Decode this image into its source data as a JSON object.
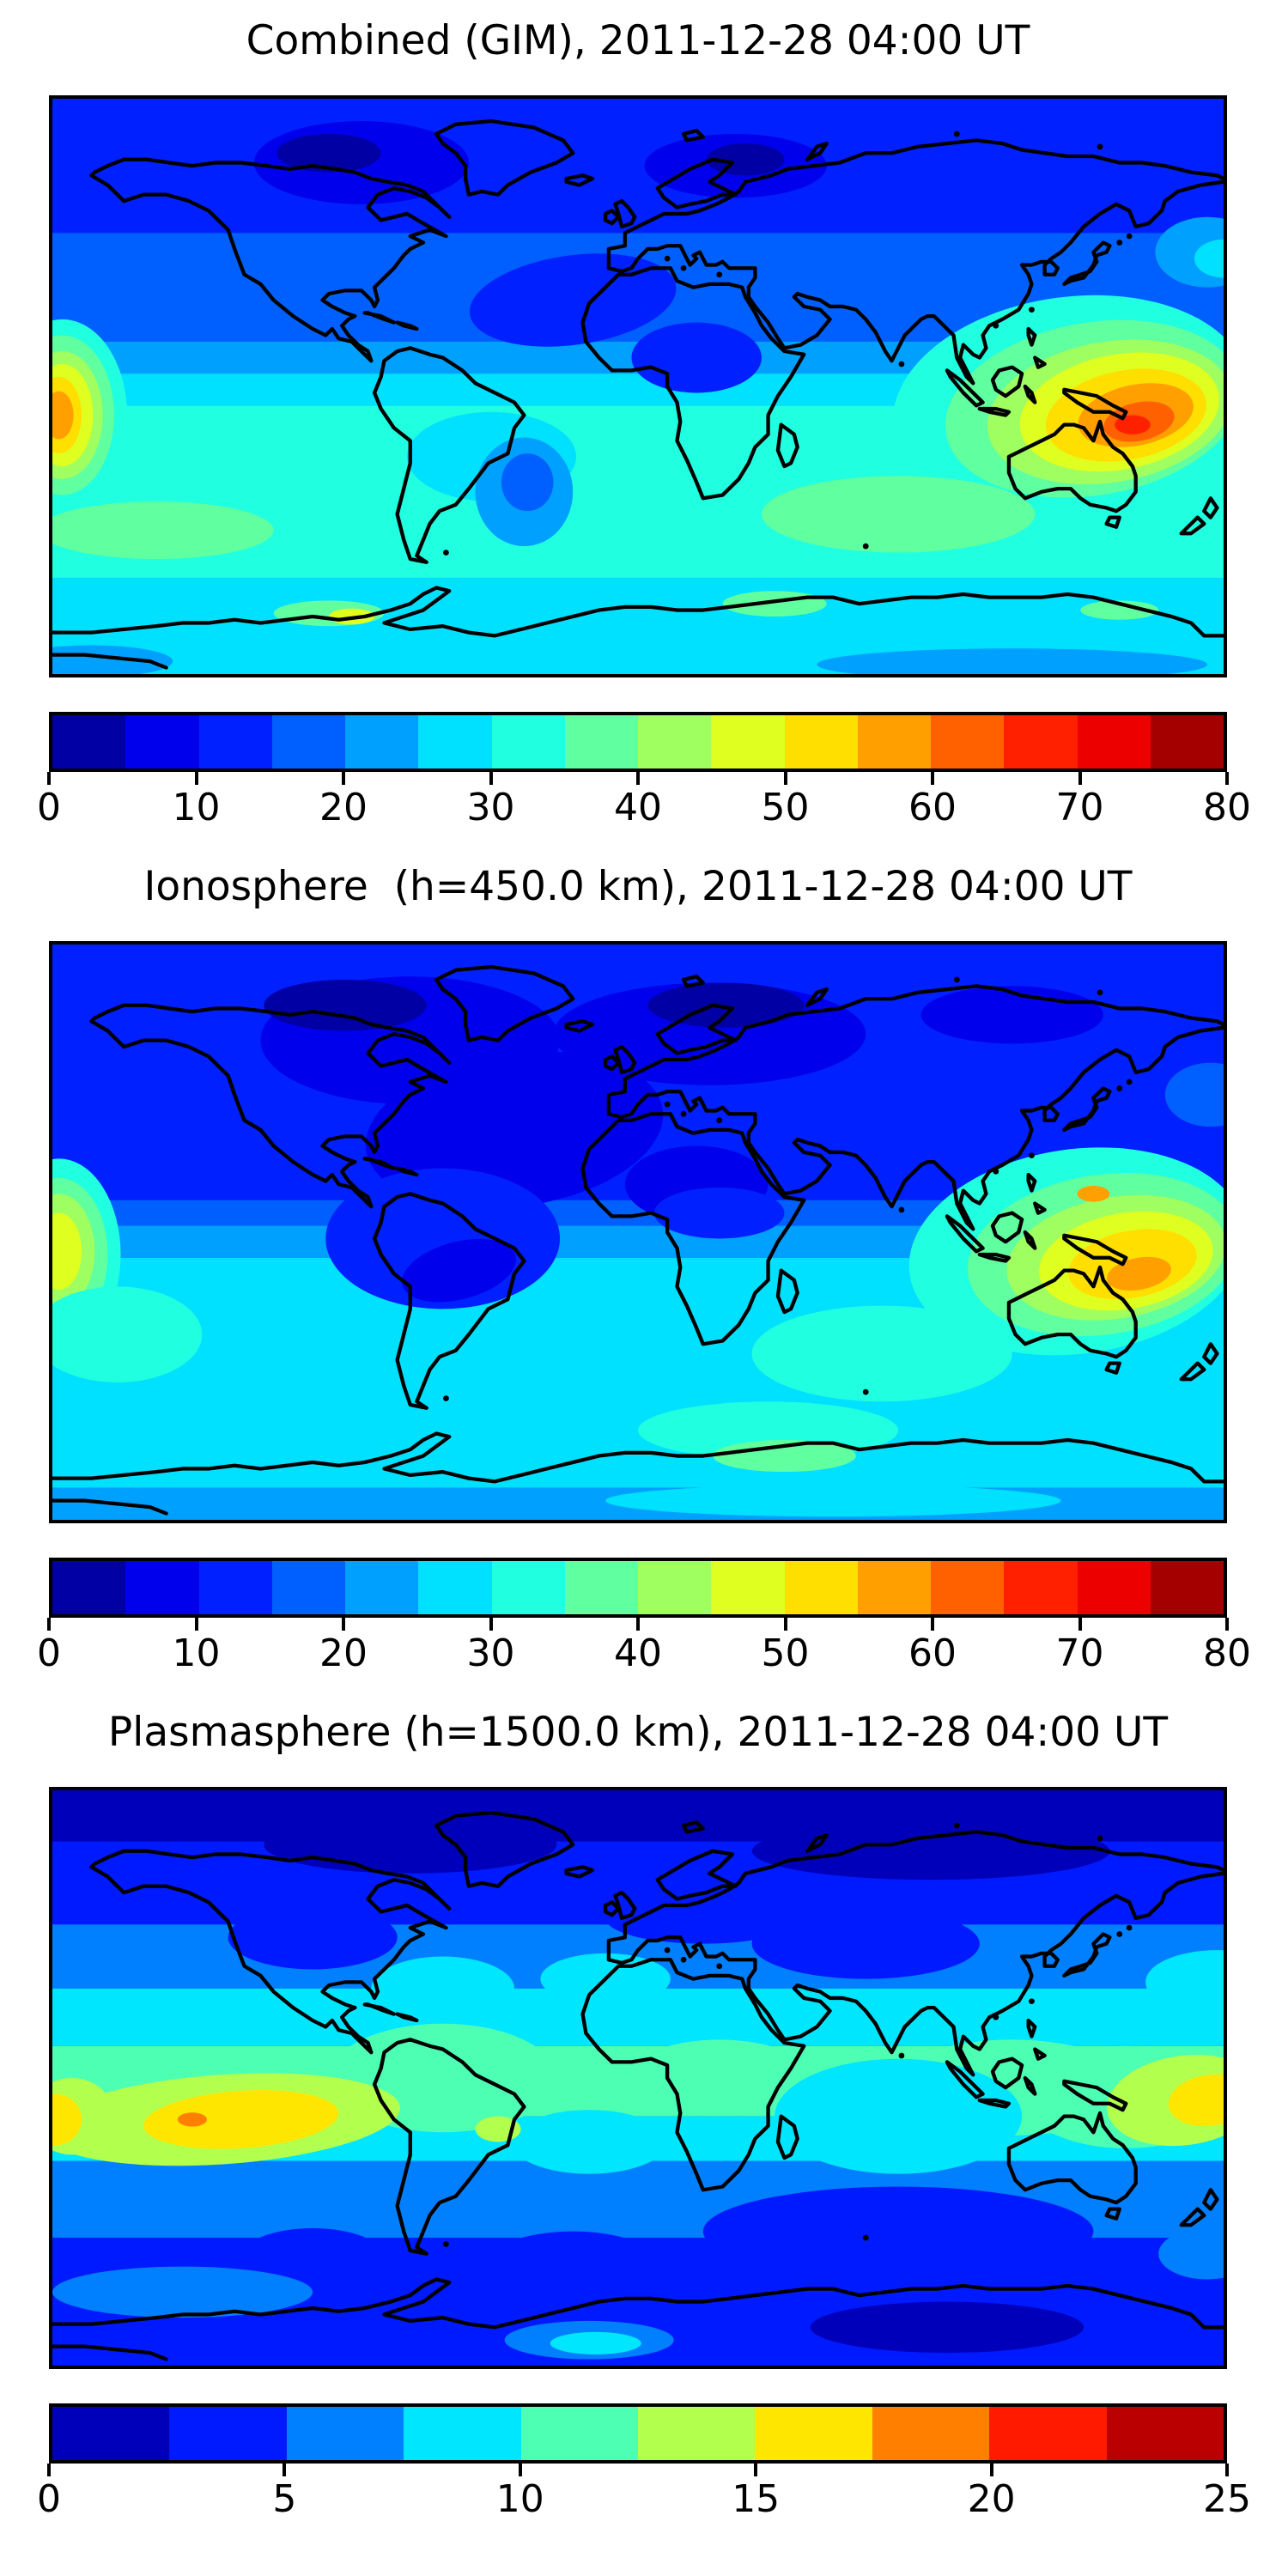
{
  "figure": {
    "background": "#ffffff",
    "text_color": "#000000",
    "border_color": "#000000"
  },
  "chart_data": {
    "type": "heatmap",
    "subtype": "filled-contour world maps (vertical TEC), 3 stacked panels with horizontal colorbars",
    "projection": "equirectangular",
    "lon_range": [
      -180,
      180
    ],
    "lat_range": [
      -90,
      90
    ],
    "grid": false,
    "panels": [
      {
        "id": "combined-gim",
        "title": "Combined (GIM), 2011-12-28 04:00 UT",
        "colorbar": {
          "orientation": "horizontal",
          "min": 0,
          "max": 80,
          "n_bands": 16,
          "ticks": [
            "0",
            "10",
            "20",
            "30",
            "40",
            "50",
            "60",
            "70",
            "80"
          ],
          "band_colors": [
            "#0000a4",
            "#0000ec",
            "#0020ff",
            "#0060ff",
            "#00a0ff",
            "#00e0ff",
            "#20ffdf",
            "#60ff9f",
            "#9fff60",
            "#dfff20",
            "#ffdf00",
            "#ff9f00",
            "#ff6000",
            "#ff2000",
            "#ec0000",
            "#a40000"
          ]
        },
        "field": {
          "base": 3,
          "lat_bands": [
            [
              90,
              48,
              2
            ],
            [
              14,
              4,
              4
            ],
            [
              4,
              -6,
              5
            ],
            [
              -6,
              -60,
              6
            ],
            [
              -60,
              -90,
              5
            ]
          ],
          "blobs": [
            [
              -85,
              70,
              33,
              13,
              0,
              1
            ],
            [
              -95,
              73,
              16,
              6,
              0,
              0
            ],
            [
              30,
              69,
              28,
              10,
              0,
              1
            ],
            [
              33,
              71,
              12,
              5,
              0,
              0
            ],
            [
              -20,
              27,
              32,
              14,
              -8,
              2
            ],
            [
              18,
              9,
              20,
              11,
              0,
              2
            ],
            [
              175,
              42,
              16,
              11,
              0,
              4
            ],
            [
              180,
              40,
              9,
              6,
              0,
              5
            ],
            [
              133,
              -6,
              55,
              34,
              -8,
              6
            ],
            [
              140,
              -7,
              46,
              27,
              -10,
              7
            ],
            [
              145,
              -8,
              38,
              22,
              -10,
              8
            ],
            [
              148,
              -8,
              31,
              18,
              -11,
              9
            ],
            [
              150,
              -9,
              25,
              14,
              -11,
              10
            ],
            [
              153,
              -9,
              18,
              9.5,
              -12,
              11
            ],
            [
              154,
              -11,
              11,
              6,
              -12,
              12
            ],
            [
              152,
              -12,
              5.5,
              3,
              0,
              13
            ],
            [
              -177,
              -9,
              20,
              30,
              0,
              6
            ],
            [
              -177,
              -9,
              16,
              25,
              0,
              7
            ],
            [
              -177,
              -9,
              12.5,
              20,
              0,
              8
            ],
            [
              -177,
              -9,
              9.5,
              16,
              0,
              9
            ],
            [
              -178,
              -9,
              7,
              12,
              0,
              10
            ],
            [
              -178,
              -9,
              4.5,
              7.5,
              0,
              11
            ],
            [
              -45,
              -22,
              26,
              14,
              0,
              5
            ],
            [
              -35,
              -33,
              15,
              17,
              0,
              4
            ],
            [
              -34,
              -30,
              8,
              9,
              0,
              3
            ],
            [
              80,
              -40,
              42,
              12,
              0,
              7
            ],
            [
              -148,
              -45,
              36,
              9,
              0,
              7
            ],
            [
              -95,
              -71,
              17,
              4,
              0,
              7
            ],
            [
              -88,
              -72,
              7,
              2.5,
              0,
              9
            ],
            [
              42,
              -68,
              16,
              4,
              0,
              7
            ],
            [
              148,
              -70,
              12,
              3,
              0,
              7
            ],
            [
              -168,
              -86,
              25,
              5,
              0,
              4
            ],
            [
              115,
              -87,
              60,
              5,
              0,
              4
            ]
          ]
        }
      },
      {
        "id": "ionosphere",
        "title": "Ionosphere  (h=450.0 km), 2011-12-28 04:00 UT",
        "colorbar": {
          "orientation": "horizontal",
          "min": 0,
          "max": 80,
          "n_bands": 16,
          "ticks": [
            "0",
            "10",
            "20",
            "30",
            "40",
            "50",
            "60",
            "70",
            "80"
          ],
          "band_colors": [
            "#0000a4",
            "#0000ec",
            "#0020ff",
            "#0060ff",
            "#00a0ff",
            "#00e0ff",
            "#20ffdf",
            "#60ff9f",
            "#9fff60",
            "#dfff20",
            "#ffdf00",
            "#ff9f00",
            "#ff6000",
            "#ff2000",
            "#ec0000",
            "#a40000"
          ]
        },
        "field": {
          "base": 2,
          "lat_bands": [
            [
              10,
              2,
              3
            ],
            [
              2,
              -8,
              4
            ],
            [
              -8,
              -80,
              5
            ],
            [
              -80,
              -90,
              4
            ]
          ],
          "blobs": [
            [
              -70,
              60,
              46,
              20,
              0,
              1
            ],
            [
              22,
              62,
              48,
              16,
              0,
              1
            ],
            [
              115,
              68,
              28,
              9,
              0,
              1
            ],
            [
              -90,
              71,
              25,
              8,
              0,
              0
            ],
            [
              27,
              71,
              24,
              7,
              0,
              0
            ],
            [
              -38,
              32,
              46,
              24,
              -8,
              1
            ],
            [
              18,
              15,
              22,
              12,
              0,
              1
            ],
            [
              25,
              6,
              20,
              8,
              0,
              2
            ],
            [
              -60,
              -2,
              36,
              22,
              0,
              2
            ],
            [
              -55,
              -12,
              18,
              9,
              -15,
              1
            ],
            [
              176,
              43,
              14,
              10,
              0,
              3
            ],
            [
              135,
              -6,
              52,
              32,
              -8,
              6
            ],
            [
              143,
              -7,
              42,
              25,
              -9,
              7
            ],
            [
              147,
              -8,
              34,
              19,
              -10,
              8
            ],
            [
              150,
              -9,
              27,
              15,
              -10,
              9
            ],
            [
              152,
              -10,
              20,
              10.5,
              -11,
              10
            ],
            [
              154,
              -13,
              10,
              5,
              -11,
              11
            ],
            [
              140,
              12,
              5,
              2.5,
              0,
              11
            ],
            [
              -178,
              -7,
              19,
              30,
              0,
              6
            ],
            [
              -178,
              -7,
              15,
              24,
              0,
              7
            ],
            [
              -178,
              -6,
              11,
              18,
              0,
              8
            ],
            [
              -178,
              -6,
              7,
              12,
              0,
              9
            ],
            [
              75,
              -38,
              40,
              15,
              0,
              6
            ],
            [
              -160,
              -32,
              26,
              15,
              0,
              6
            ],
            [
              40,
              -62,
              40,
              9,
              0,
              6
            ],
            [
              45,
              -70,
              22,
              5,
              0,
              7
            ],
            [
              60,
              -84,
              70,
              5,
              0,
              5
            ]
          ]
        }
      },
      {
        "id": "plasmasphere",
        "title": "Plasmasphere (h=1500.0 km), 2011-12-28 04:00 UT",
        "colorbar": {
          "orientation": "horizontal",
          "min": 0,
          "max": 25,
          "n_bands": 10,
          "ticks": [
            "0",
            "5",
            "10",
            "15",
            "20",
            "25"
          ],
          "band_colors": [
            "#0000ba",
            "#001aff",
            "#0080ff",
            "#00e6ff",
            "#4dffb3",
            "#b3ff4d",
            "#ffe600",
            "#ff8000",
            "#ff1a00",
            "#ba0000"
          ]
        },
        "field": {
          "base": 1,
          "lat_bands": [
            [
              90,
              74,
              0
            ],
            [
              48,
              28,
              2
            ],
            [
              28,
              10,
              3
            ],
            [
              10,
              -12,
              4
            ],
            [
              -12,
              -26,
              3
            ],
            [
              -26,
              -50,
              2
            ],
            [
              -50,
              -90,
              1
            ]
          ],
          "blobs": [
            [
              -70,
              73,
              45,
              9,
              0,
              0
            ],
            [
              90,
              71,
              55,
              9,
              0,
              0
            ],
            [
              -100,
              44,
              26,
              10,
              0,
              1
            ],
            [
              70,
              42,
              35,
              11,
              0,
              1
            ],
            [
              20,
              50,
              30,
              8,
              0,
              1
            ],
            [
              -60,
              28,
              22,
              10,
              0,
              3
            ],
            [
              -10,
              31,
              20,
              8,
              0,
              3
            ],
            [
              178,
              30,
              22,
              10,
              0,
              3
            ],
            [
              -60,
              0,
              35,
              17,
              0,
              4
            ],
            [
              25,
              0,
              28,
              12,
              0,
              4
            ],
            [
              115,
              -3,
              38,
              15,
              0,
              4
            ],
            [
              150,
              -6,
              32,
              16,
              0,
              4
            ],
            [
              80,
              -12,
              38,
              18,
              0,
              3
            ],
            [
              -15,
              -20,
              24,
              10,
              0,
              3
            ],
            [
              -128,
              -13,
              55,
              14,
              -4,
              5
            ],
            [
              -174,
              -12,
              13,
              12,
              0,
              5
            ],
            [
              -122,
              -13,
              30,
              9,
              -4,
              6
            ],
            [
              -179,
              -13,
              8,
              8,
              0,
              6
            ],
            [
              -137,
              -13,
              4.5,
              2.2,
              0,
              7
            ],
            [
              -43,
              -16,
              7,
              4,
              0,
              5
            ],
            [
              168,
              -7,
              24,
              14,
              -8,
              5
            ],
            [
              176,
              -7,
              13,
              8,
              -8,
              6
            ],
            [
              -100,
              -56,
              22,
              9,
              0,
              1
            ],
            [
              -20,
              -57,
              25,
              9,
              0,
              1
            ],
            [
              80,
              -48,
              60,
              14,
              0,
              1
            ],
            [
              -140,
              -67,
              40,
              8,
              0,
              2
            ],
            [
              175,
              -55,
              15,
              8,
              0,
              2
            ],
            [
              95,
              -78,
              42,
              8,
              0,
              0
            ],
            [
              -15,
              -82,
              26,
              6,
              0,
              2
            ],
            [
              -13,
              -83,
              14,
              3.5,
              0,
              3
            ]
          ]
        }
      }
    ]
  }
}
